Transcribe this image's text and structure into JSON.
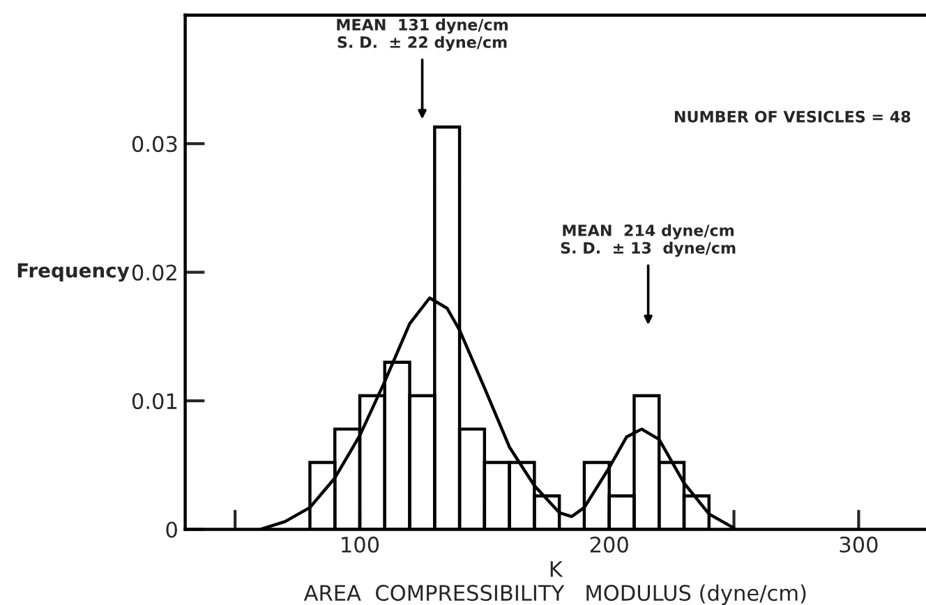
{
  "chart_data": {
    "type": "histogram",
    "ylabel": "Frequency",
    "xlabel": "K\nAREA  COMPRESSIBILITY   MODULUS (dyne/cm)",
    "bins": [
      80,
      90,
      100,
      110,
      120,
      130,
      140,
      150,
      160,
      170,
      180,
      190,
      200,
      210,
      220,
      230,
      240
    ],
    "values": [
      0.0052,
      0.0078,
      0.0104,
      0.013,
      0.0104,
      0.0313,
      0.0078,
      0.0052,
      0.0052,
      0.0026,
      0,
      0.0052,
      0.0026,
      0.0104,
      0.0052,
      0.0026
    ],
    "color": "#000000",
    "series": [
      {
        "type": "line",
        "color": "#000000",
        "x": [
          60,
          70,
          80,
          90,
          100,
          110,
          120,
          128,
          135,
          140,
          150,
          160,
          170,
          180,
          185,
          190,
          200,
          207,
          213,
          220,
          230,
          240,
          250
        ],
        "values": [
          0.0,
          0.0006,
          0.0017,
          0.004,
          0.0073,
          0.0115,
          0.016,
          0.018,
          0.0172,
          0.0155,
          0.011,
          0.0064,
          0.0034,
          0.0013,
          0.001,
          0.0017,
          0.0048,
          0.0072,
          0.0078,
          0.007,
          0.0036,
          0.0012,
          0.0001
        ]
      }
    ],
    "xlim": [
      30,
      327
    ],
    "ylim": [
      0,
      0.04
    ],
    "xticks": [
      {
        "value": 50,
        "label": null
      },
      100,
      {
        "value": 150,
        "label": null
      },
      200,
      {
        "value": 250,
        "label": null
      },
      300
    ],
    "yticks": [
      0,
      0.01,
      0.02,
      0.03
    ],
    "grid": false,
    "annotations": [
      "MEAN  131 dyne/cm\nS. D.  ± 22 dyne/cm",
      "MEAN  214 dyne/cm\nS. D.  ± 13  dyne/cm",
      "NUMBER OF VESICLES = 48"
    ]
  }
}
